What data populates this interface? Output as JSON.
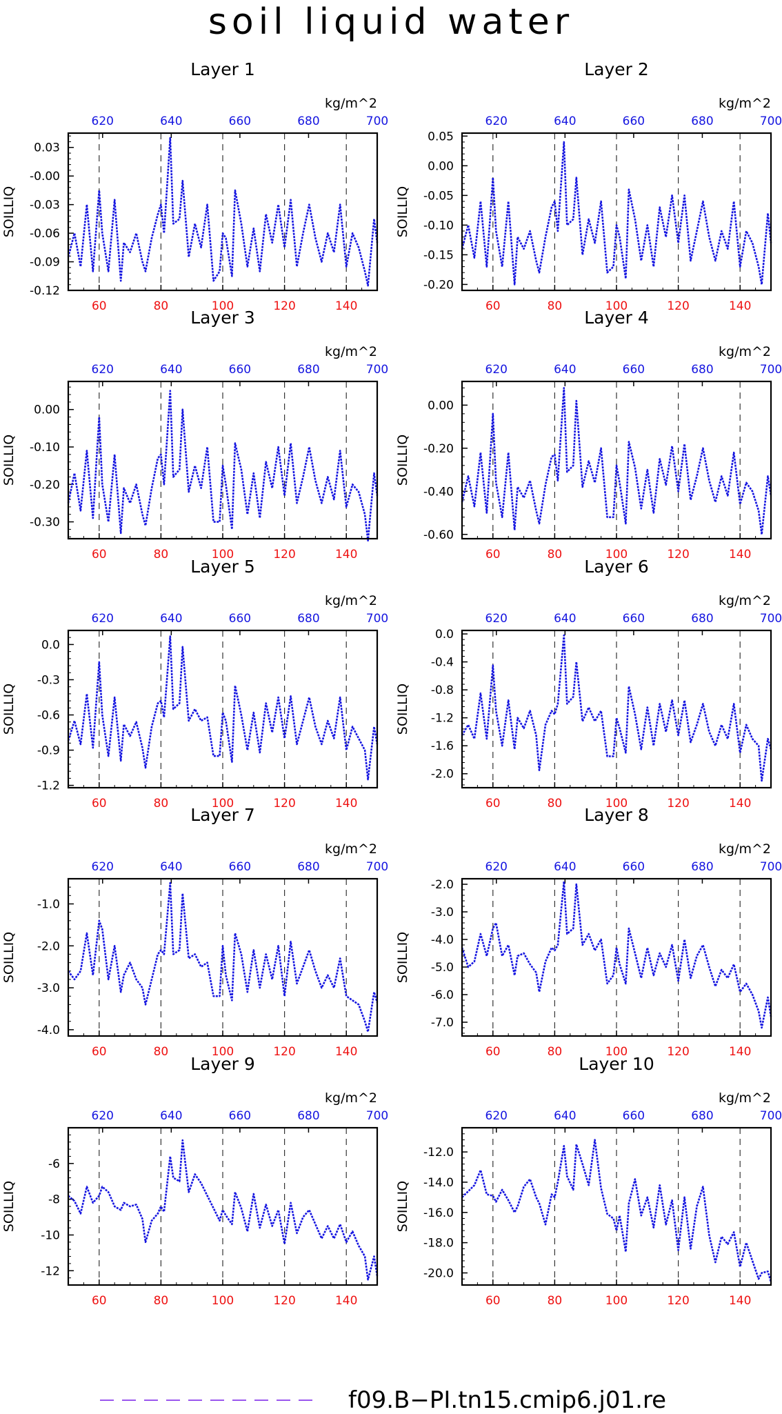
{
  "title": "soil liquid water",
  "legend": {
    "label": "f09.B−PI.tn15.cmip6.j01.re",
    "color": "#9955ee"
  },
  "colors": {
    "line": "#1515e0",
    "bottom_ticks": "#ee1111",
    "top_ticks": "#1515e0"
  },
  "axes": {
    "xlim": [
      50,
      150
    ],
    "x_ticks": [
      "60",
      "80",
      "100",
      "120",
      "140"
    ],
    "x_tick_values": [
      60,
      80,
      100,
      120,
      140
    ],
    "top_ticks": [
      "620",
      "640",
      "660",
      "680",
      "700"
    ],
    "top_tick_values": [
      620,
      640,
      660,
      680,
      700
    ],
    "top_xlim": [
      610,
      700
    ],
    "top_unit": "kg/m^2",
    "ylabel": "SOILLIQ",
    "dashed_gridlines_at": [
      60,
      80,
      100,
      120,
      140
    ]
  },
  "chart_data": [
    {
      "type": "line",
      "title": "Layer 1",
      "ylim": [
        -0.12,
        0.045
      ],
      "yticks": [
        -0.12,
        -0.09,
        -0.06,
        -0.03,
        0.0,
        0.03
      ],
      "ytick_labels": [
        "-0.12",
        "-0.09",
        "-0.06",
        "-0.03",
        "-0.00",
        "0.03"
      ],
      "x": [
        50,
        52,
        54,
        56,
        58,
        60,
        61,
        63,
        65,
        67,
        68,
        70,
        72,
        74,
        75,
        77,
        79,
        80,
        81,
        83,
        84,
        86,
        87,
        89,
        91,
        93,
        95,
        97,
        99,
        100,
        101,
        103,
        104,
        106,
        108,
        110,
        112,
        114,
        116,
        118,
        120,
        122,
        124,
        126,
        128,
        130,
        132,
        134,
        136,
        138,
        140,
        142,
        144,
        146,
        147,
        149,
        150
      ],
      "y": [
        -0.085,
        -0.06,
        -0.095,
        -0.03,
        -0.1,
        -0.015,
        -0.06,
        -0.1,
        -0.025,
        -0.11,
        -0.07,
        -0.08,
        -0.06,
        -0.09,
        -0.1,
        -0.065,
        -0.04,
        -0.03,
        -0.06,
        0.04,
        -0.05,
        -0.045,
        -0.005,
        -0.085,
        -0.05,
        -0.075,
        -0.03,
        -0.11,
        -0.1,
        -0.06,
        -0.065,
        -0.105,
        -0.015,
        -0.05,
        -0.095,
        -0.055,
        -0.1,
        -0.04,
        -0.07,
        -0.03,
        -0.075,
        -0.025,
        -0.095,
        -0.06,
        -0.03,
        -0.065,
        -0.09,
        -0.06,
        -0.08,
        -0.03,
        -0.095,
        -0.06,
        -0.075,
        -0.1,
        -0.115,
        -0.045,
        -0.07
      ]
    },
    {
      "type": "line",
      "title": "Layer 2",
      "ylim": [
        -0.21,
        0.055
      ],
      "yticks": [
        -0.2,
        -0.15,
        -0.1,
        -0.05,
        0.0,
        0.05
      ],
      "ytick_labels": [
        "-0.20",
        "-0.15",
        "-0.10",
        "-0.05",
        "0.00",
        "0.05"
      ],
      "x": [
        50,
        52,
        54,
        56,
        58,
        60,
        61,
        63,
        65,
        67,
        68,
        70,
        72,
        74,
        75,
        77,
        79,
        80,
        81,
        83,
        84,
        86,
        87,
        89,
        91,
        93,
        95,
        97,
        99,
        100,
        101,
        103,
        104,
        106,
        108,
        110,
        112,
        114,
        116,
        118,
        120,
        122,
        124,
        126,
        128,
        130,
        132,
        134,
        136,
        138,
        140,
        142,
        144,
        146,
        147,
        149,
        150
      ],
      "y": [
        -0.14,
        -0.1,
        -0.155,
        -0.06,
        -0.17,
        -0.02,
        -0.11,
        -0.17,
        -0.06,
        -0.2,
        -0.12,
        -0.14,
        -0.11,
        -0.16,
        -0.18,
        -0.12,
        -0.07,
        -0.06,
        -0.11,
        0.04,
        -0.1,
        -0.09,
        -0.02,
        -0.15,
        -0.09,
        -0.13,
        -0.06,
        -0.18,
        -0.17,
        -0.1,
        -0.12,
        -0.19,
        -0.04,
        -0.09,
        -0.16,
        -0.1,
        -0.17,
        -0.07,
        -0.12,
        -0.05,
        -0.13,
        -0.05,
        -0.16,
        -0.11,
        -0.06,
        -0.12,
        -0.16,
        -0.11,
        -0.14,
        -0.06,
        -0.17,
        -0.11,
        -0.13,
        -0.17,
        -0.2,
        -0.08,
        -0.13
      ]
    },
    {
      "type": "line",
      "title": "Layer 3",
      "ylim": [
        -0.345,
        0.075
      ],
      "yticks": [
        -0.3,
        -0.2,
        -0.1,
        0.0
      ],
      "ytick_labels": [
        "-0.30",
        "-0.20",
        "-0.10",
        "0.00"
      ],
      "x": [
        50,
        52,
        54,
        56,
        58,
        60,
        61,
        63,
        65,
        67,
        68,
        70,
        72,
        74,
        75,
        77,
        79,
        80,
        81,
        83,
        84,
        86,
        87,
        89,
        91,
        93,
        95,
        97,
        99,
        100,
        101,
        103,
        104,
        106,
        108,
        110,
        112,
        114,
        116,
        118,
        120,
        122,
        124,
        126,
        128,
        130,
        132,
        134,
        136,
        138,
        140,
        142,
        144,
        146,
        147,
        149,
        150
      ],
      "y": [
        -0.25,
        -0.17,
        -0.27,
        -0.11,
        -0.29,
        -0.02,
        -0.2,
        -0.3,
        -0.12,
        -0.33,
        -0.21,
        -0.25,
        -0.2,
        -0.28,
        -0.31,
        -0.21,
        -0.13,
        -0.12,
        -0.2,
        0.05,
        -0.18,
        -0.16,
        0.0,
        -0.22,
        -0.15,
        -0.21,
        -0.1,
        -0.3,
        -0.3,
        -0.15,
        -0.2,
        -0.32,
        -0.09,
        -0.16,
        -0.28,
        -0.17,
        -0.29,
        -0.14,
        -0.21,
        -0.1,
        -0.23,
        -0.09,
        -0.25,
        -0.18,
        -0.1,
        -0.19,
        -0.25,
        -0.18,
        -0.24,
        -0.11,
        -0.26,
        -0.2,
        -0.22,
        -0.28,
        -0.35,
        -0.17,
        -0.23
      ]
    },
    {
      "type": "line",
      "title": "Layer 4",
      "ylim": [
        -0.62,
        0.11
      ],
      "yticks": [
        -0.6,
        -0.4,
        -0.2,
        0.0
      ],
      "ytick_labels": [
        "-0.60",
        "-0.40",
        "-0.20",
        "0.00"
      ],
      "x": [
        50,
        52,
        54,
        56,
        58,
        60,
        61,
        63,
        65,
        67,
        68,
        70,
        72,
        74,
        75,
        77,
        79,
        80,
        81,
        83,
        84,
        86,
        87,
        89,
        91,
        93,
        95,
        97,
        99,
        100,
        101,
        103,
        104,
        106,
        108,
        110,
        112,
        114,
        116,
        118,
        120,
        122,
        124,
        126,
        128,
        130,
        132,
        134,
        136,
        138,
        140,
        142,
        144,
        146,
        147,
        149,
        150
      ],
      "y": [
        -0.45,
        -0.33,
        -0.47,
        -0.22,
        -0.5,
        -0.04,
        -0.36,
        -0.52,
        -0.22,
        -0.58,
        -0.38,
        -0.43,
        -0.35,
        -0.49,
        -0.55,
        -0.37,
        -0.24,
        -0.23,
        -0.35,
        0.08,
        -0.31,
        -0.28,
        0.02,
        -0.38,
        -0.26,
        -0.36,
        -0.2,
        -0.52,
        -0.52,
        -0.28,
        -0.36,
        -0.55,
        -0.17,
        -0.29,
        -0.48,
        -0.3,
        -0.5,
        -0.25,
        -0.37,
        -0.19,
        -0.4,
        -0.18,
        -0.44,
        -0.33,
        -0.2,
        -0.35,
        -0.45,
        -0.33,
        -0.42,
        -0.22,
        -0.46,
        -0.36,
        -0.4,
        -0.49,
        -0.6,
        -0.33,
        -0.42
      ]
    },
    {
      "type": "line",
      "title": "Layer 5",
      "ylim": [
        -1.22,
        0.12
      ],
      "yticks": [
        -1.2,
        -0.9,
        -0.6,
        -0.3,
        0.0
      ],
      "ytick_labels": [
        "-1.2",
        "-0.9",
        "-0.6",
        "-0.3",
        "0.0"
      ],
      "x": [
        50,
        52,
        54,
        56,
        58,
        60,
        61,
        63,
        65,
        67,
        68,
        70,
        72,
        74,
        75,
        77,
        79,
        80,
        81,
        83,
        84,
        86,
        87,
        89,
        91,
        93,
        95,
        97,
        99,
        100,
        101,
        103,
        104,
        106,
        108,
        110,
        112,
        114,
        116,
        118,
        120,
        122,
        124,
        126,
        128,
        130,
        132,
        134,
        136,
        138,
        140,
        142,
        144,
        146,
        147,
        149,
        150
      ],
      "y": [
        -0.82,
        -0.65,
        -0.85,
        -0.42,
        -0.88,
        -0.15,
        -0.6,
        -0.95,
        -0.45,
        -0.99,
        -0.68,
        -0.78,
        -0.66,
        -0.88,
        -1.05,
        -0.7,
        -0.5,
        -0.48,
        -0.62,
        0.07,
        -0.55,
        -0.5,
        -0.02,
        -0.65,
        -0.55,
        -0.65,
        -0.62,
        -0.95,
        -0.95,
        -0.58,
        -0.65,
        -1.0,
        -0.35,
        -0.6,
        -0.9,
        -0.58,
        -0.92,
        -0.5,
        -0.75,
        -0.45,
        -0.8,
        -0.44,
        -0.85,
        -0.65,
        -0.45,
        -0.7,
        -0.85,
        -0.65,
        -0.8,
        -0.45,
        -0.9,
        -0.7,
        -0.8,
        -0.9,
        -1.15,
        -0.7,
        -0.85
      ]
    },
    {
      "type": "line",
      "title": "Layer 6",
      "ylim": [
        -2.2,
        0.05
      ],
      "yticks": [
        -2.0,
        -1.6,
        -1.2,
        -0.8,
        -0.4,
        0.0
      ],
      "ytick_labels": [
        "-2.0",
        "-1.6",
        "-1.2",
        "-0.8",
        "-0.4",
        "0.0"
      ],
      "x": [
        50,
        52,
        54,
        56,
        58,
        60,
        61,
        63,
        65,
        67,
        68,
        70,
        72,
        74,
        75,
        77,
        79,
        80,
        81,
        83,
        84,
        86,
        87,
        89,
        91,
        93,
        95,
        97,
        99,
        100,
        101,
        103,
        104,
        106,
        108,
        110,
        112,
        114,
        116,
        118,
        120,
        122,
        124,
        126,
        128,
        130,
        132,
        134,
        136,
        138,
        140,
        142,
        144,
        146,
        147,
        149,
        150
      ],
      "y": [
        -1.45,
        -1.3,
        -1.5,
        -0.85,
        -1.5,
        -0.45,
        -1.1,
        -1.6,
        -0.95,
        -1.65,
        -1.2,
        -1.35,
        -1.1,
        -1.45,
        -1.95,
        -1.3,
        -1.1,
        -1.15,
        -1.0,
        -0.02,
        -1.0,
        -0.9,
        -0.4,
        -1.25,
        -1.05,
        -1.25,
        -1.1,
        -1.75,
        -1.75,
        -1.2,
        -1.35,
        -1.7,
        -0.75,
        -1.15,
        -1.65,
        -1.05,
        -1.6,
        -1.0,
        -1.4,
        -0.95,
        -1.45,
        -0.95,
        -1.55,
        -1.3,
        -1.0,
        -1.4,
        -1.6,
        -1.3,
        -1.5,
        -1.0,
        -1.7,
        -1.3,
        -1.5,
        -1.6,
        -2.1,
        -1.5,
        -1.65
      ]
    },
    {
      "type": "line",
      "title": "Layer 7",
      "ylim": [
        -4.15,
        -0.4
      ],
      "yticks": [
        -4.0,
        -3.0,
        -2.0,
        -1.0
      ],
      "ytick_labels": [
        "-4.0",
        "-3.0",
        "-2.0",
        "-1.0"
      ],
      "x": [
        50,
        52,
        54,
        56,
        58,
        60,
        61,
        63,
        65,
        67,
        68,
        70,
        72,
        74,
        75,
        77,
        79,
        80,
        81,
        83,
        84,
        86,
        87,
        89,
        91,
        93,
        95,
        97,
        99,
        100,
        101,
        103,
        104,
        106,
        108,
        110,
        112,
        114,
        116,
        118,
        120,
        122,
        124,
        126,
        128,
        130,
        132,
        134,
        136,
        138,
        140,
        142,
        144,
        146,
        147,
        149,
        150
      ],
      "y": [
        -2.6,
        -2.8,
        -2.6,
        -1.7,
        -2.7,
        -1.4,
        -1.6,
        -2.8,
        -2.0,
        -3.1,
        -2.7,
        -2.4,
        -2.8,
        -3.0,
        -3.4,
        -2.8,
        -2.2,
        -2.1,
        -2.2,
        -0.5,
        -2.2,
        -2.1,
        -0.75,
        -2.3,
        -2.2,
        -2.5,
        -2.4,
        -3.2,
        -3.2,
        -2.0,
        -2.7,
        -3.3,
        -1.7,
        -2.2,
        -3.1,
        -2.1,
        -3.0,
        -2.2,
        -2.8,
        -2.0,
        -3.2,
        -1.9,
        -2.9,
        -2.5,
        -2.1,
        -2.6,
        -3.0,
        -2.7,
        -3.0,
        -2.3,
        -3.2,
        -3.3,
        -3.4,
        -3.8,
        -4.05,
        -3.1,
        -3.35
      ]
    },
    {
      "type": "line",
      "title": "Layer 8",
      "ylim": [
        -7.5,
        -1.8
      ],
      "yticks": [
        -7.0,
        -6.0,
        -5.0,
        -4.0,
        -3.0,
        -2.0
      ],
      "ytick_labels": [
        "-7.0",
        "-6.0",
        "-5.0",
        "-4.0",
        "-3.0",
        "-2.0"
      ],
      "x": [
        50,
        52,
        54,
        56,
        58,
        60,
        61,
        63,
        65,
        67,
        68,
        70,
        72,
        74,
        75,
        77,
        79,
        80,
        81,
        83,
        84,
        86,
        87,
        89,
        91,
        93,
        95,
        97,
        99,
        100,
        101,
        103,
        104,
        106,
        108,
        110,
        112,
        114,
        116,
        118,
        120,
        122,
        124,
        126,
        128,
        130,
        132,
        134,
        136,
        138,
        140,
        142,
        144,
        146,
        147,
        149,
        150
      ],
      "y": [
        -4.3,
        -5.0,
        -4.8,
        -3.8,
        -4.6,
        -3.6,
        -3.4,
        -4.6,
        -4.2,
        -5.3,
        -4.6,
        -4.5,
        -4.9,
        -5.2,
        -5.9,
        -4.8,
        -4.3,
        -4.4,
        -4.2,
        -1.9,
        -3.8,
        -3.6,
        -2.0,
        -4.2,
        -3.8,
        -4.4,
        -4.0,
        -5.6,
        -5.3,
        -4.3,
        -4.9,
        -5.6,
        -3.6,
        -4.5,
        -5.4,
        -4.3,
        -5.3,
        -4.5,
        -5.0,
        -4.2,
        -5.5,
        -4.0,
        -5.4,
        -4.6,
        -4.2,
        -5.0,
        -5.7,
        -5.1,
        -5.4,
        -4.9,
        -5.9,
        -5.6,
        -6.0,
        -6.6,
        -7.2,
        -6.1,
        -6.8
      ]
    },
    {
      "type": "line",
      "title": "Layer 9",
      "ylim": [
        -12.8,
        -4.0
      ],
      "yticks": [
        -12,
        -10,
        -8,
        -6
      ],
      "ytick_labels": [
        "-12",
        "-10",
        "-8",
        "-6"
      ],
      "x": [
        50,
        52,
        54,
        56,
        58,
        60,
        61,
        63,
        65,
        67,
        68,
        70,
        72,
        74,
        75,
        77,
        79,
        80,
        81,
        83,
        84,
        86,
        87,
        89,
        91,
        93,
        95,
        97,
        99,
        100,
        101,
        103,
        104,
        106,
        108,
        110,
        112,
        114,
        116,
        118,
        120,
        122,
        124,
        126,
        128,
        130,
        132,
        134,
        136,
        138,
        140,
        142,
        144,
        146,
        147,
        149,
        150
      ],
      "y": [
        -7.8,
        -8.1,
        -8.8,
        -7.3,
        -8.2,
        -7.8,
        -7.3,
        -7.6,
        -8.4,
        -8.6,
        -8.2,
        -8.4,
        -8.3,
        -9.1,
        -10.4,
        -9.2,
        -8.8,
        -8.4,
        -8.7,
        -5.6,
        -6.8,
        -7.0,
        -4.7,
        -7.6,
        -6.6,
        -7.1,
        -7.8,
        -8.5,
        -9.2,
        -8.6,
        -8.9,
        -9.4,
        -7.6,
        -8.5,
        -9.8,
        -7.7,
        -9.6,
        -8.3,
        -9.5,
        -8.6,
        -10.5,
        -8.2,
        -9.9,
        -9.0,
        -8.6,
        -9.4,
        -10.2,
        -9.5,
        -10.2,
        -9.4,
        -10.4,
        -9.8,
        -10.6,
        -11.2,
        -12.5,
        -11.2,
        -12.3
      ]
    },
    {
      "type": "line",
      "title": "Layer 10",
      "ylim": [
        -20.8,
        -10.4
      ],
      "yticks": [
        -20.0,
        -18.0,
        -16.0,
        -14.0,
        -12.0
      ],
      "ytick_labels": [
        "-20.0",
        "-18.0",
        "-16.0",
        "-14.0",
        "-12.0"
      ],
      "x": [
        50,
        52,
        54,
        56,
        58,
        60,
        61,
        63,
        65,
        67,
        68,
        70,
        72,
        74,
        75,
        77,
        79,
        80,
        81,
        83,
        84,
        86,
        87,
        89,
        91,
        93,
        95,
        97,
        99,
        100,
        101,
        103,
        104,
        106,
        108,
        110,
        112,
        114,
        116,
        118,
        120,
        122,
        124,
        126,
        128,
        130,
        132,
        134,
        136,
        138,
        140,
        142,
        144,
        146,
        147,
        149,
        150
      ],
      "y": [
        -15.0,
        -14.6,
        -14.2,
        -13.2,
        -14.8,
        -14.9,
        -15.3,
        -14.5,
        -15.2,
        -16.0,
        -15.6,
        -14.3,
        -13.8,
        -15.0,
        -15.4,
        -16.8,
        -14.8,
        -15.0,
        -14.0,
        -11.6,
        -13.6,
        -14.5,
        -11.5,
        -12.8,
        -14.2,
        -11.2,
        -14.4,
        -16.1,
        -16.4,
        -17.2,
        -16.2,
        -18.6,
        -15.4,
        -13.8,
        -16.2,
        -15.0,
        -17.0,
        -14.2,
        -16.8,
        -15.2,
        -18.5,
        -15.0,
        -18.4,
        -15.6,
        -14.3,
        -17.5,
        -19.3,
        -17.6,
        -18.1,
        -17.3,
        -19.6,
        -18.0,
        -19.2,
        -20.4,
        -20.0,
        -19.9,
        -20.6
      ]
    }
  ]
}
